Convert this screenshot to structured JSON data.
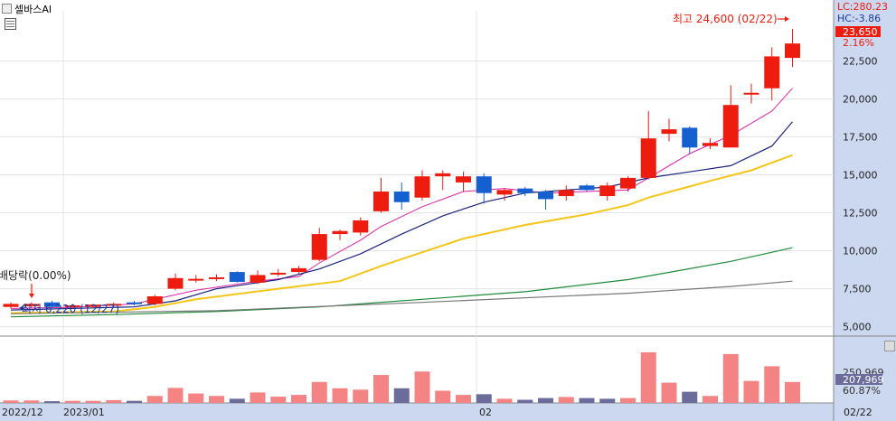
{
  "header": {
    "tab_label": "셀바스AI",
    "lc_label": "LC:280.23",
    "hc_label": "HC:-3.86",
    "current_price_label": "23,650",
    "change_pct_label": "2.16%"
  },
  "annotations": {
    "high_label": "최고 24,600 (02/22)",
    "low_label": "최저 6,220 (12/27)",
    "ex_div_label": "배당락(0.00%)"
  },
  "volume_panel": {
    "last_volume_label": "250,969",
    "avg_volume_label": "207,969",
    "volume_ratio_label": "60.87%"
  },
  "x_axis_labels": [
    "2022/12",
    "2023/01",
    "02",
    "02/22"
  ],
  "colors": {
    "up": "#ee1c0e",
    "down": "#1560d0",
    "ma5": "#e020a8",
    "ma20": "#1a237e",
    "ma60": "#f5c518",
    "ma120": "#1e8a3a",
    "ma240": "#777777",
    "vol_up": "#f48484",
    "vol_down": "#6c6c9c",
    "axis_bg": "#ccd8f0"
  },
  "chart_data": {
    "type": "candlestick",
    "y_axis_ticks": [
      "5,000",
      "7,500",
      "10,000",
      "12,500",
      "15,000",
      "17,500",
      "20,000",
      "22,500"
    ],
    "ylim": [
      4500,
      25800
    ],
    "candles": [
      {
        "o": 6300,
        "h": 6600,
        "l": 6200,
        "c": 6500
      },
      {
        "o": 6350,
        "h": 6600,
        "l": 6250,
        "c": 6500
      },
      {
        "o": 6600,
        "h": 6700,
        "l": 6220,
        "c": 6300
      },
      {
        "o": 6300,
        "h": 6500,
        "l": 6250,
        "c": 6400
      },
      {
        "o": 6300,
        "h": 6500,
        "l": 6200,
        "c": 6450
      },
      {
        "o": 6400,
        "h": 6600,
        "l": 6300,
        "c": 6500
      },
      {
        "o": 6600,
        "h": 6700,
        "l": 6400,
        "c": 6500
      },
      {
        "o": 6500,
        "h": 7100,
        "l": 6400,
        "c": 7000
      },
      {
        "o": 7500,
        "h": 8500,
        "l": 7400,
        "c": 8200
      },
      {
        "o": 8100,
        "h": 8400,
        "l": 7900,
        "c": 8150
      },
      {
        "o": 8150,
        "h": 8450,
        "l": 8000,
        "c": 8250
      },
      {
        "o": 8600,
        "h": 8650,
        "l": 7900,
        "c": 7950
      },
      {
        "o": 7900,
        "h": 8700,
        "l": 7800,
        "c": 8400
      },
      {
        "o": 8500,
        "h": 8800,
        "l": 8300,
        "c": 8550
      },
      {
        "o": 8600,
        "h": 9000,
        "l": 8500,
        "c": 8850
      },
      {
        "o": 9400,
        "h": 11500,
        "l": 9300,
        "c": 11100
      },
      {
        "o": 11100,
        "h": 11400,
        "l": 10700,
        "c": 11300
      },
      {
        "o": 11200,
        "h": 12200,
        "l": 11000,
        "c": 12000
      },
      {
        "o": 12600,
        "h": 14800,
        "l": 12500,
        "c": 13900
      },
      {
        "o": 13900,
        "h": 14500,
        "l": 12700,
        "c": 13200
      },
      {
        "o": 13500,
        "h": 15300,
        "l": 13300,
        "c": 14900
      },
      {
        "o": 14900,
        "h": 15300,
        "l": 14000,
        "c": 15100
      },
      {
        "o": 14500,
        "h": 15200,
        "l": 13900,
        "c": 14900
      },
      {
        "o": 14900,
        "h": 15100,
        "l": 13100,
        "c": 13800
      },
      {
        "o": 13700,
        "h": 14100,
        "l": 13300,
        "c": 14000
      },
      {
        "o": 14100,
        "h": 14200,
        "l": 13600,
        "c": 13800
      },
      {
        "o": 13900,
        "h": 14000,
        "l": 12700,
        "c": 13400
      },
      {
        "o": 13600,
        "h": 14300,
        "l": 13300,
        "c": 14000
      },
      {
        "o": 14300,
        "h": 14400,
        "l": 13900,
        "c": 14000
      },
      {
        "o": 13600,
        "h": 14500,
        "l": 13300,
        "c": 14300
      },
      {
        "o": 14100,
        "h": 14900,
        "l": 13900,
        "c": 14800
      },
      {
        "o": 14800,
        "h": 19200,
        "l": 14700,
        "c": 17400
      },
      {
        "o": 17700,
        "h": 18700,
        "l": 17200,
        "c": 18000
      },
      {
        "o": 18100,
        "h": 18200,
        "l": 16400,
        "c": 16800
      },
      {
        "o": 16900,
        "h": 17400,
        "l": 16700,
        "c": 17100
      },
      {
        "o": 16800,
        "h": 20900,
        "l": 16800,
        "c": 19600
      },
      {
        "o": 20300,
        "h": 21000,
        "l": 19700,
        "c": 20400
      },
      {
        "o": 20700,
        "h": 23400,
        "l": 19900,
        "c": 22800
      },
      {
        "o": 22700,
        "h": 24600,
        "l": 22100,
        "c": 23650
      }
    ],
    "moving_averages": {
      "ma5": [
        [
          0,
          6200
        ],
        [
          3,
          6280
        ],
        [
          6,
          6500
        ],
        [
          9,
          7400
        ],
        [
          12,
          8000
        ],
        [
          14,
          8300
        ],
        [
          15,
          9200
        ],
        [
          17,
          10700
        ],
        [
          18,
          11600
        ],
        [
          20,
          12900
        ],
        [
          22,
          13900
        ],
        [
          24,
          14100
        ],
        [
          26,
          13800
        ],
        [
          28,
          13900
        ],
        [
          30,
          14000
        ],
        [
          31,
          14800
        ],
        [
          33,
          16400
        ],
        [
          35,
          17600
        ],
        [
          36,
          18400
        ],
        [
          37,
          19200
        ],
        [
          38,
          20700
        ]
      ],
      "ma20": [
        [
          0,
          6100
        ],
        [
          6,
          6300
        ],
        [
          8,
          6700
        ],
        [
          10,
          7500
        ],
        [
          13,
          8100
        ],
        [
          15,
          8800
        ],
        [
          17,
          9800
        ],
        [
          19,
          11100
        ],
        [
          21,
          12300
        ],
        [
          23,
          13200
        ],
        [
          25,
          13800
        ],
        [
          27,
          14000
        ],
        [
          29,
          14200
        ],
        [
          31,
          14800
        ],
        [
          33,
          15200
        ],
        [
          35,
          15600
        ],
        [
          37,
          16900
        ],
        [
          38,
          18500
        ]
      ],
      "ma60": [
        [
          0,
          5900
        ],
        [
          5,
          6000
        ],
        [
          7,
          6300
        ],
        [
          9,
          6800
        ],
        [
          13,
          7500
        ],
        [
          16,
          8000
        ],
        [
          18,
          9000
        ],
        [
          20,
          9900
        ],
        [
          22,
          10800
        ],
        [
          25,
          11700
        ],
        [
          28,
          12400
        ],
        [
          30,
          13000
        ],
        [
          31,
          13500
        ],
        [
          34,
          14600
        ],
        [
          36,
          15300
        ],
        [
          38,
          16300
        ]
      ],
      "ma120": [
        [
          0,
          5650
        ],
        [
          5,
          5800
        ],
        [
          10,
          6000
        ],
        [
          15,
          6300
        ],
        [
          20,
          6800
        ],
        [
          25,
          7300
        ],
        [
          30,
          8100
        ],
        [
          35,
          9300
        ],
        [
          38,
          10200
        ]
      ],
      "ma240": [
        [
          0,
          5850
        ],
        [
          10,
          6050
        ],
        [
          20,
          6600
        ],
        [
          30,
          7200
        ],
        [
          35,
          7650
        ],
        [
          38,
          8000
        ]
      ]
    },
    "volume": {
      "values": [
        0.07,
        0.07,
        0.05,
        0.06,
        0.06,
        0.08,
        0.06,
        0.2,
        0.43,
        0.27,
        0.2,
        0.12,
        0.3,
        0.18,
        0.23,
        0.6,
        0.42,
        0.38,
        0.8,
        0.42,
        0.9,
        0.35,
        0.23,
        0.25,
        0.12,
        0.09,
        0.14,
        0.17,
        0.14,
        0.12,
        0.14,
        1.45,
        0.58,
        0.32,
        0.2,
        1.4,
        0.63,
        1.05,
        0.6
      ],
      "up": [
        true,
        true,
        false,
        true,
        true,
        true,
        false,
        true,
        true,
        true,
        true,
        false,
        true,
        true,
        true,
        true,
        true,
        true,
        true,
        false,
        true,
        true,
        true,
        false,
        true,
        false,
        false,
        true,
        false,
        false,
        true,
        true,
        true,
        false,
        true,
        true,
        true,
        true,
        true
      ]
    }
  }
}
